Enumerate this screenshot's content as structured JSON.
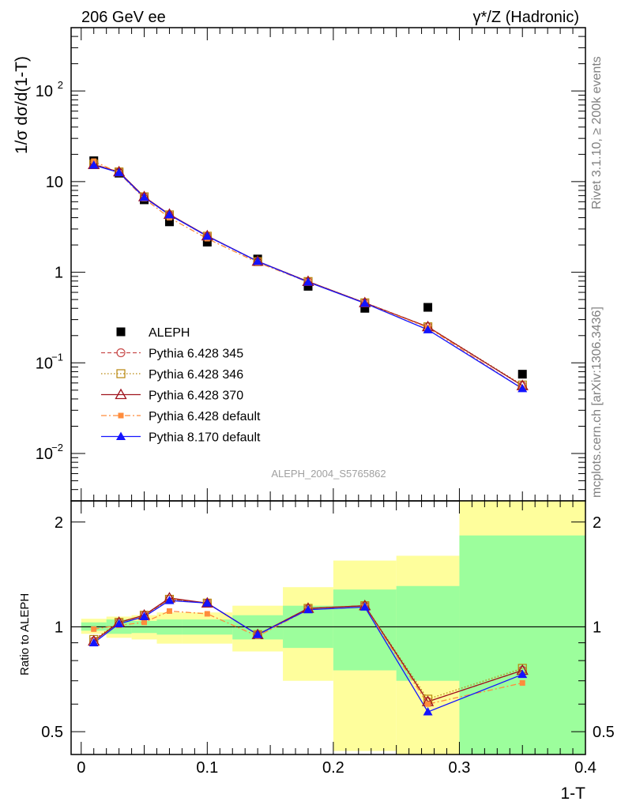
{
  "header": {
    "energy": "206 GeV ee",
    "process": "γ*/Z (Hadronic)"
  },
  "side_text": {
    "rivet": "Rivet 3.1.10, ≥ 200k events",
    "site": "mcplots.cern.ch [arXiv:1306.3436]"
  },
  "analysis_id": "ALEPH_2004_S5765862",
  "colors": {
    "data": "#000000",
    "p345": "#c84b4b",
    "p346": "#b8860b",
    "p370": "#a0141e",
    "p6def": "#ff8c3c",
    "p8def": "#1414ff",
    "band_inner": "#9cfe9c",
    "band_outer": "#fefe9c"
  },
  "chart_data": [
    {
      "type": "scatter",
      "panel": "main",
      "ylabel": "1/σ dσ/d(1-T)",
      "yscale": "log",
      "ylim": [
        0.003,
        500
      ],
      "xlim": [
        -0.008,
        0.4
      ],
      "yticks": [
        {
          "v": 0.01,
          "base": "10",
          "exp": "−2"
        },
        {
          "v": 0.1,
          "base": "10",
          "exp": "−1"
        },
        {
          "v": 1,
          "base": "1",
          "exp": ""
        },
        {
          "v": 10,
          "base": "10",
          "exp": ""
        },
        {
          "v": 100,
          "base": "10",
          "exp": "2"
        }
      ],
      "x": [
        0.01,
        0.03,
        0.05,
        0.07,
        0.1,
        0.14,
        0.18,
        0.225,
        0.275,
        0.35
      ],
      "bin_edges": [
        0,
        0.02,
        0.04,
        0.06,
        0.08,
        0.12,
        0.16,
        0.2,
        0.25,
        0.3,
        0.4
      ],
      "legend_position": "center-left",
      "series": [
        {
          "name": "ALEPH",
          "key": "data",
          "values": [
            17.0,
            12.4,
            6.3,
            3.6,
            2.15,
            1.4,
            0.7,
            0.4,
            0.41,
            0.075
          ]
        },
        {
          "name": "Pythia 6.428 345",
          "key": "p345",
          "values": [
            15.5,
            12.8,
            6.8,
            4.3,
            2.5,
            1.32,
            0.79,
            0.46,
            0.25,
            0.056
          ]
        },
        {
          "name": "Pythia 6.428 346",
          "key": "p346",
          "values": [
            15.6,
            12.8,
            6.8,
            4.3,
            2.5,
            1.31,
            0.79,
            0.46,
            0.25,
            0.057
          ]
        },
        {
          "name": "Pythia 6.428 370",
          "key": "p370",
          "values": [
            15.4,
            12.8,
            6.8,
            4.35,
            2.52,
            1.32,
            0.79,
            0.46,
            0.25,
            0.056
          ]
        },
        {
          "name": "Pythia 6.428 default",
          "key": "p6def",
          "values": [
            16.8,
            12.5,
            6.5,
            4.0,
            2.35,
            1.28,
            0.78,
            0.455,
            0.245,
            0.052
          ]
        },
        {
          "name": "Pythia 8.170 default",
          "key": "p8def",
          "values": [
            15.2,
            12.6,
            6.7,
            4.3,
            2.5,
            1.32,
            0.78,
            0.455,
            0.232,
            0.052
          ]
        }
      ]
    },
    {
      "type": "scatter",
      "panel": "ratio",
      "ylabel": "Ratio to ALEPH",
      "xlabel": "1-T",
      "yscale": "log",
      "ylim": [
        0.43,
        2.3
      ],
      "xlim": [
        -0.008,
        0.4
      ],
      "yticks": [
        0.5,
        1,
        2
      ],
      "xticks": [
        0,
        0.1,
        0.2,
        0.3,
        0.4
      ],
      "x": [
        0.01,
        0.03,
        0.05,
        0.07,
        0.1,
        0.14,
        0.18,
        0.225,
        0.275,
        0.35
      ],
      "bands": {
        "edges": [
          0,
          0.02,
          0.04,
          0.06,
          0.08,
          0.12,
          0.16,
          0.2,
          0.25,
          0.3,
          0.4
        ],
        "inner": [
          [
            0.975,
            1.03
          ],
          [
            0.955,
            1.05
          ],
          [
            0.96,
            1.04
          ],
          [
            0.95,
            1.05
          ],
          [
            0.95,
            1.05
          ],
          [
            0.92,
            1.08
          ],
          [
            0.87,
            1.15
          ],
          [
            0.75,
            1.28
          ],
          [
            0.7,
            1.31
          ],
          [
            0.43,
            1.83
          ]
        ],
        "outer": [
          [
            0.955,
            1.055
          ],
          [
            0.93,
            1.07
          ],
          [
            0.92,
            1.08
          ],
          [
            0.895,
            1.1
          ],
          [
            0.895,
            1.1
          ],
          [
            0.85,
            1.15
          ],
          [
            0.7,
            1.3
          ],
          [
            0.44,
            1.55
          ],
          [
            0.43,
            1.6
          ],
          [
            0.43,
            2.3
          ]
        ]
      },
      "series": [
        {
          "name": "Pythia 6.428 345",
          "key": "p345",
          "values": [
            0.91,
            1.03,
            1.08,
            1.2,
            1.17,
            0.95,
            1.13,
            1.15,
            0.61,
            0.75
          ]
        },
        {
          "name": "Pythia 6.428 346",
          "key": "p346",
          "values": [
            0.92,
            1.03,
            1.08,
            1.2,
            1.17,
            0.95,
            1.13,
            1.15,
            0.62,
            0.76
          ]
        },
        {
          "name": "Pythia 6.428 370",
          "key": "p370",
          "values": [
            0.91,
            1.03,
            1.08,
            1.21,
            1.17,
            0.95,
            1.13,
            1.15,
            0.61,
            0.75
          ]
        },
        {
          "name": "Pythia 6.428 default",
          "key": "p6def",
          "values": [
            0.985,
            1.01,
            1.03,
            1.11,
            1.09,
            0.94,
            1.12,
            1.14,
            0.6,
            0.69
          ]
        },
        {
          "name": "Pythia 8.170 default",
          "key": "p8def",
          "values": [
            0.9,
            1.02,
            1.07,
            1.19,
            1.17,
            0.95,
            1.12,
            1.14,
            0.57,
            0.73
          ]
        }
      ]
    }
  ]
}
